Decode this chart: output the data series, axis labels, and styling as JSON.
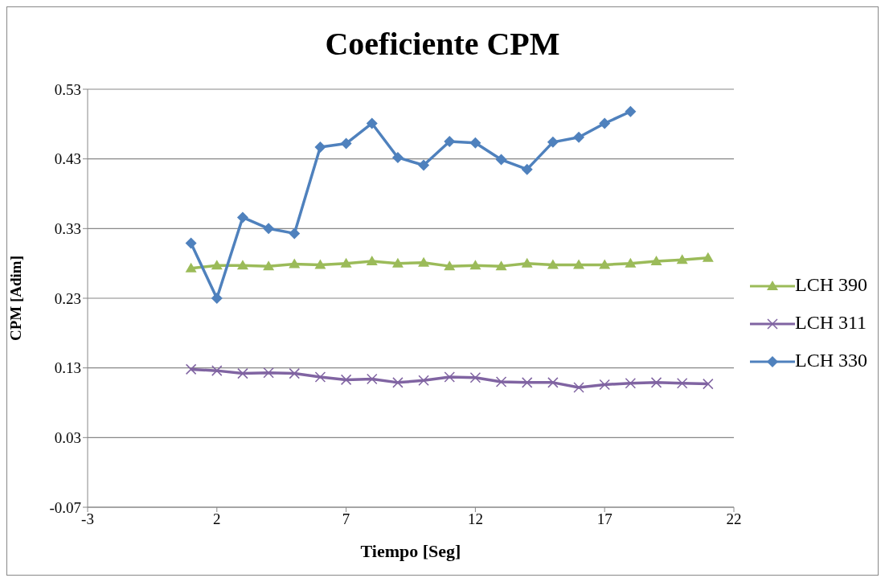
{
  "chart_data": {
    "type": "line",
    "title": "Coeficiente CPM",
    "xlabel": "Tiempo [Seg]",
    "ylabel": "CPM [Adim]",
    "x": [
      1,
      2,
      3,
      4,
      5,
      6,
      7,
      8,
      9,
      10,
      11,
      12,
      13,
      14,
      15,
      16,
      17,
      18,
      19,
      20,
      21
    ],
    "xlim": [
      -3,
      22
    ],
    "xticks": [
      -3,
      2,
      7,
      12,
      17,
      22
    ],
    "ylim": [
      -0.07,
      0.53
    ],
    "yticks": [
      -0.07,
      0.03,
      0.13,
      0.23,
      0.33,
      0.43,
      0.53
    ],
    "grid": "y",
    "legend": "right",
    "line_style": "solid",
    "series": [
      {
        "name": "LCH 390",
        "color": "#9bbb59",
        "marker": "triangle",
        "values": [
          0.273,
          0.277,
          0.277,
          0.276,
          0.279,
          0.278,
          0.28,
          0.283,
          0.28,
          0.281,
          0.276,
          0.277,
          0.276,
          0.28,
          0.278,
          0.278,
          0.278,
          0.28,
          0.283,
          0.285,
          0.288
        ]
      },
      {
        "name": "LCH 311",
        "color": "#8064a2",
        "marker": "cross",
        "values": [
          0.128,
          0.126,
          0.122,
          0.123,
          0.122,
          0.117,
          0.113,
          0.114,
          0.109,
          0.112,
          0.117,
          0.116,
          0.11,
          0.109,
          0.109,
          0.102,
          0.106,
          0.108,
          0.109,
          0.108,
          0.107
        ]
      },
      {
        "name": "LCH 330",
        "color": "#4f81bd",
        "marker": "diamond",
        "values": [
          0.309,
          0.23,
          0.346,
          0.33,
          0.323,
          0.447,
          0.452,
          0.481,
          0.432,
          0.421,
          0.455,
          0.453,
          0.429,
          0.415,
          0.454,
          0.461,
          0.481,
          0.498,
          null,
          null,
          null
        ]
      }
    ]
  }
}
